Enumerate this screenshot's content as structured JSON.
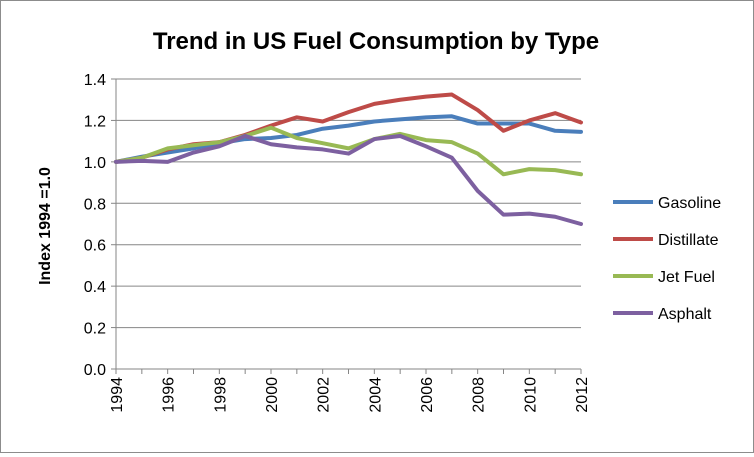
{
  "chart_data": {
    "type": "line",
    "title": "Trend in US Fuel Consumption by Type",
    "xlabel": "",
    "ylabel": "Index 1994 =1.0",
    "x": [
      1994,
      1995,
      1996,
      1997,
      1998,
      1999,
      2000,
      2001,
      2002,
      2003,
      2004,
      2005,
      2006,
      2007,
      2008,
      2009,
      2010,
      2011,
      2012
    ],
    "x_tick_labels": [
      "1994",
      "1996",
      "1998",
      "2000",
      "2002",
      "2004",
      "2006",
      "2008",
      "2010",
      "2012"
    ],
    "y_tick_labels": [
      "0.0",
      "0.2",
      "0.4",
      "0.6",
      "0.8",
      "1.0",
      "1.2",
      "1.4"
    ],
    "ylim": [
      0,
      1.4
    ],
    "grid": "horizontal",
    "legend": "right",
    "series": [
      {
        "name": "Gasoline",
        "color": "#4a7ebb",
        "values": [
          1.0,
          1.025,
          1.045,
          1.065,
          1.09,
          1.11,
          1.115,
          1.13,
          1.16,
          1.175,
          1.195,
          1.205,
          1.215,
          1.22,
          1.185,
          1.185,
          1.185,
          1.15,
          1.145
        ]
      },
      {
        "name": "Distillate",
        "color": "#be4b48",
        "values": [
          1.0,
          1.02,
          1.06,
          1.085,
          1.095,
          1.13,
          1.175,
          1.215,
          1.195,
          1.24,
          1.28,
          1.3,
          1.315,
          1.325,
          1.25,
          1.15,
          1.2,
          1.235,
          1.19
        ]
      },
      {
        "name": "Jet Fuel",
        "color": "#98b954",
        "values": [
          1.0,
          1.02,
          1.065,
          1.08,
          1.095,
          1.125,
          1.165,
          1.115,
          1.09,
          1.065,
          1.11,
          1.135,
          1.105,
          1.095,
          1.04,
          0.94,
          0.965,
          0.96,
          0.94
        ]
      },
      {
        "name": "Asphalt",
        "color": "#7d60a0",
        "values": [
          1.0,
          1.005,
          1.0,
          1.045,
          1.075,
          1.125,
          1.085,
          1.07,
          1.06,
          1.04,
          1.11,
          1.125,
          1.075,
          1.02,
          0.86,
          0.745,
          0.75,
          0.735,
          0.7
        ]
      }
    ]
  }
}
